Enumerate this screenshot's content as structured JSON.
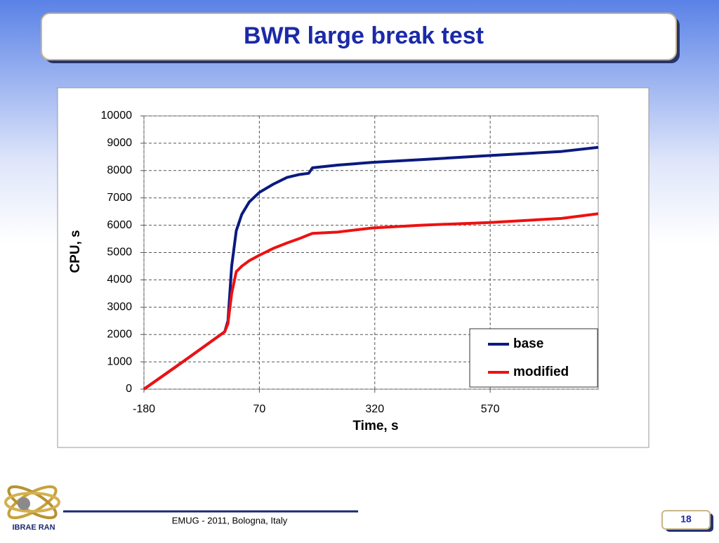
{
  "slide": {
    "title": "BWR large break test",
    "footer": "EMUG - 2011, Bologna, Italy",
    "page_number": "18",
    "logo_text": "IBRAE RAN"
  },
  "chart_data": {
    "type": "line",
    "x_label": "Time, s",
    "y_label": "CPU, s",
    "x": [
      -180,
      -100,
      -5,
      2,
      10,
      20,
      32,
      48,
      70,
      100,
      130,
      155,
      177,
      185,
      240,
      315,
      420,
      570,
      725,
      804
    ],
    "series": [
      {
        "name": "base",
        "color": "#0a1a80",
        "values": [
          0,
          950,
          2100,
          2500,
          4500,
          5800,
          6400,
          6850,
          7200,
          7500,
          7750,
          7850,
          7900,
          8100,
          8200,
          8300,
          8400,
          8550,
          8700,
          8850
        ]
      },
      {
        "name": "modified",
        "color": "#ee1111",
        "values": [
          0,
          950,
          2100,
          2400,
          3500,
          4300,
          4500,
          4700,
          4900,
          5150,
          5350,
          5500,
          5650,
          5700,
          5750,
          5900,
          6000,
          6100,
          6250,
          6420
        ]
      }
    ],
    "xlim": [
      -180,
      804
    ],
    "ylim": [
      0,
      10000
    ],
    "xticks": [
      -180,
      70,
      320,
      570
    ],
    "yticks": [
      0,
      1000,
      2000,
      3000,
      4000,
      5000,
      6000,
      7000,
      8000,
      9000,
      10000
    ],
    "grid": true,
    "legend": "lower right"
  }
}
